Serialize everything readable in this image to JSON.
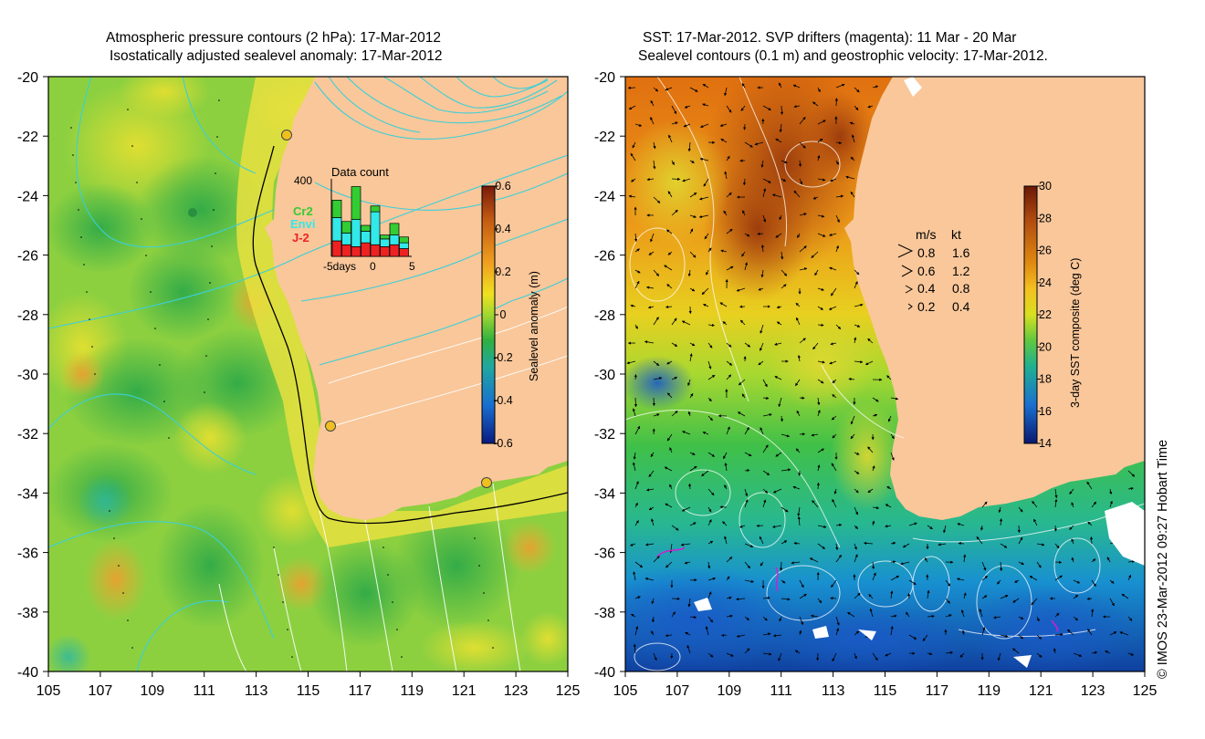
{
  "left_panel": {
    "title_line1": "Atmospheric pressure contours (2 hPa): 17-Mar-2012",
    "title_line2": "Isostatically adjusted sealevel anomaly: 17-Mar-2012",
    "lat_ticks": [
      "-20",
      "-22",
      "-24",
      "-26",
      "-28",
      "-30",
      "-32",
      "-34",
      "-36",
      "-38",
      "-40"
    ],
    "lon_ticks": [
      "105",
      "107",
      "109",
      "111",
      "113",
      "115",
      "117",
      "119",
      "121",
      "123",
      "125"
    ],
    "colorbar": {
      "label": "Sealevel anomaly (m)",
      "ticks": [
        "0.6",
        "0.4",
        "0.2",
        "0",
        "-0.2",
        "-0.4",
        "-0.6"
      ],
      "colors": [
        "#7a1a0a",
        "#c25a12",
        "#f0a020",
        "#f0e020",
        "#a0d830",
        "#30b040",
        "#20a8a0",
        "#1870d0",
        "#0a1a80"
      ]
    },
    "inset": {
      "title": "Data count",
      "ymax": "400",
      "legend": [
        "Cr2",
        "Envi",
        "J-2"
      ],
      "legend_colors": [
        "#33cc33",
        "#33e8e8",
        "#ee2222"
      ],
      "xtick_labels": [
        "-5days",
        "0",
        "5"
      ],
      "bars": [
        {
          "j2": 80,
          "envi": 120,
          "cr2": 90
        },
        {
          "j2": 60,
          "envi": 60,
          "cr2": 60
        },
        {
          "j2": 50,
          "envi": 140,
          "cr2": 170
        },
        {
          "j2": 70,
          "envi": 60,
          "cr2": 30
        },
        {
          "j2": 60,
          "envi": 170,
          "cr2": 30
        },
        {
          "j2": 50,
          "envi": 40,
          "cr2": 20
        },
        {
          "j2": 60,
          "envi": 50,
          "cr2": 60
        },
        {
          "j2": 40,
          "envi": 30,
          "cr2": 30
        }
      ]
    }
  },
  "right_panel": {
    "title_line1": "SST: 17-Mar-2012. SVP drifters (magenta): 11 Mar - 20 Mar",
    "title_line2": "Sealevel contours (0.1 m) and geostrophic velocity: 17-Mar-2012.",
    "lat_ticks": [
      "-20",
      "-22",
      "-24",
      "-26",
      "-28",
      "-30",
      "-32",
      "-34",
      "-36",
      "-38",
      "-40"
    ],
    "lon_ticks": [
      "105",
      "107",
      "109",
      "111",
      "113",
      "115",
      "117",
      "119",
      "121",
      "123",
      "125"
    ],
    "colorbar": {
      "label": "3-day SST composite (deg C)",
      "ticks": [
        "30",
        "28",
        "26",
        "24",
        "22",
        "20",
        "18",
        "16",
        "14"
      ],
      "colors": [
        "#6a1808",
        "#b04a10",
        "#e08a10",
        "#f4c020",
        "#d8e020",
        "#60c840",
        "#20b090",
        "#1a70d0",
        "#0a1870"
      ]
    },
    "velocity_legend": {
      "header_ms": "m/s",
      "header_kt": "kt",
      "rows": [
        {
          "ms": "0.8",
          "kt": "1.6"
        },
        {
          "ms": "0.6",
          "kt": "1.2"
        },
        {
          "ms": "0.4",
          "kt": "0.8"
        },
        {
          "ms": "0.2",
          "kt": "0.4"
        }
      ]
    }
  },
  "credit": "© IMOS 23-Mar-2012 09:27 Hobart Time"
}
